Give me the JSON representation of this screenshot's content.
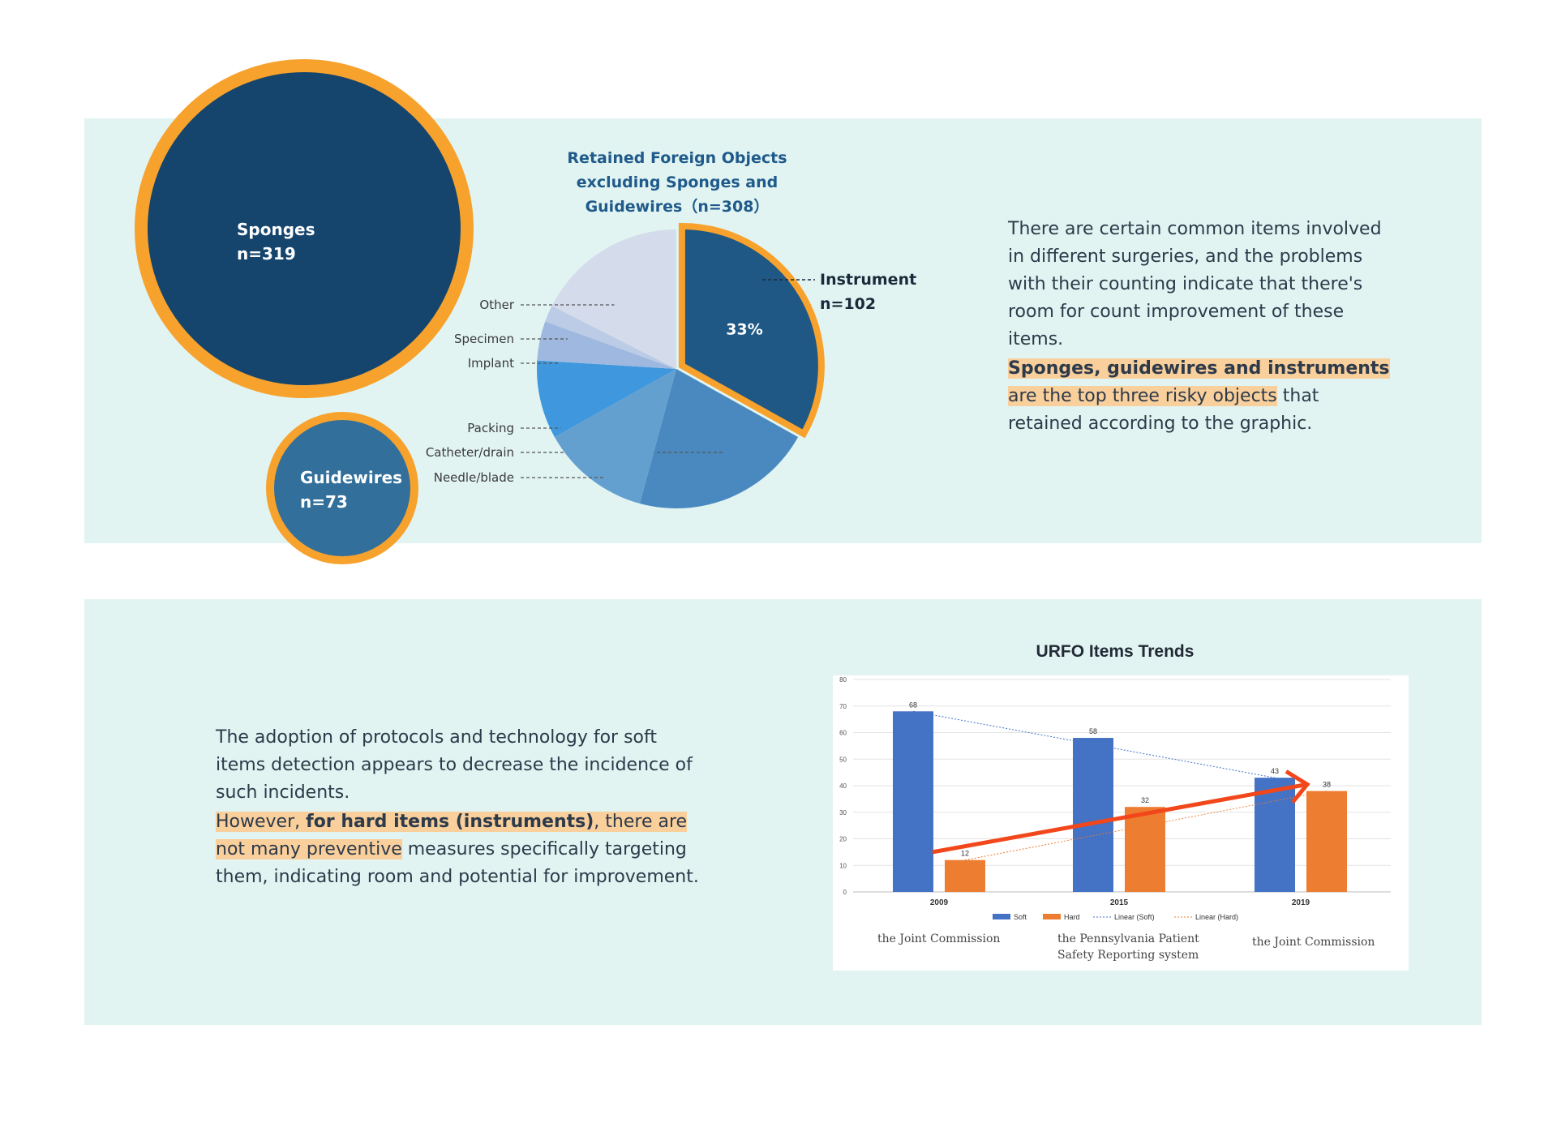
{
  "bubbles": {
    "sponges": {
      "name": "Sponges",
      "n": "n=319"
    },
    "guidewires": {
      "name": "Guidewires",
      "n": "n=73"
    }
  },
  "pie_title": [
    "Retained Foreign Objects",
    "excluding Sponges and",
    "Guidewires（n=308）"
  ],
  "top_text": {
    "p1": "There are certain common items involved in different surgeries, and the problems with their counting indicate that there's room for count improvement of these items.",
    "p2_bold": "Sponges, guidewires and instruments",
    "p2_hl": " are the top three risky objects",
    "p2_rest": " that retained according to the graphic."
  },
  "bottom_text": {
    "p1": "The adoption of protocols and technology for soft items detection appears to decrease the incidence of such incidents.",
    "p2_a": "However, ",
    "p2_bold": "for hard items (instruments)",
    "p2_b": ", there are not many preventive",
    "p2_c": " measures specifically targeting them, indicating room and potential for improvement."
  },
  "sources": {
    "s2009": "the Joint Commission",
    "s2015a": "the Pennsylvania Patient",
    "s2015b": "Safety Reporting system",
    "s2019": "the Joint Commission"
  },
  "colors": {
    "panel": "#e1f4f2",
    "navy": "#15456d",
    "orange": "#f7a22d",
    "soft": "#4472c4",
    "hard": "#ed7d31",
    "highlight": "#f9cf9c"
  },
  "chart_data": [
    {
      "type": "pie",
      "title": "Retained Foreign Objects excluding Sponges and Guidewires（n=308）",
      "slices": [
        {
          "label": "Instrument",
          "value": 102,
          "pct_label": "33%",
          "n_label": "n=102",
          "color": "#1f5785",
          "highlight": true
        },
        {
          "label": "Catheter/drain",
          "value": 65,
          "color": "#4a89bf"
        },
        {
          "label": "Needle/blade",
          "value": 39,
          "color": "#64a0cf"
        },
        {
          "label": "Packing",
          "value": 28,
          "color": "#3f97dd"
        },
        {
          "label": "Implant",
          "value": 14,
          "color": "#9fb8df"
        },
        {
          "label": "Specimen",
          "value": 6,
          "color": "#bccbe6"
        },
        {
          "label": "Other",
          "value": 54,
          "color": "#d4dcec"
        }
      ]
    },
    {
      "type": "bar",
      "title": "URFO Items Trends",
      "categories": [
        "2009",
        "2015",
        "2019"
      ],
      "series": [
        {
          "name": "Soft",
          "values": [
            68,
            58,
            43
          ],
          "color": "#4472c4"
        },
        {
          "name": "Hard",
          "values": [
            12,
            32,
            38
          ],
          "color": "#ed7d31"
        }
      ],
      "trendlines": [
        "Linear (Soft)",
        "Linear (Hard)"
      ],
      "ylim": [
        0,
        80
      ],
      "yticks": [
        0,
        10,
        20,
        30,
        40,
        50,
        60,
        70,
        80
      ],
      "grid": true,
      "legend": "bottom"
    }
  ]
}
